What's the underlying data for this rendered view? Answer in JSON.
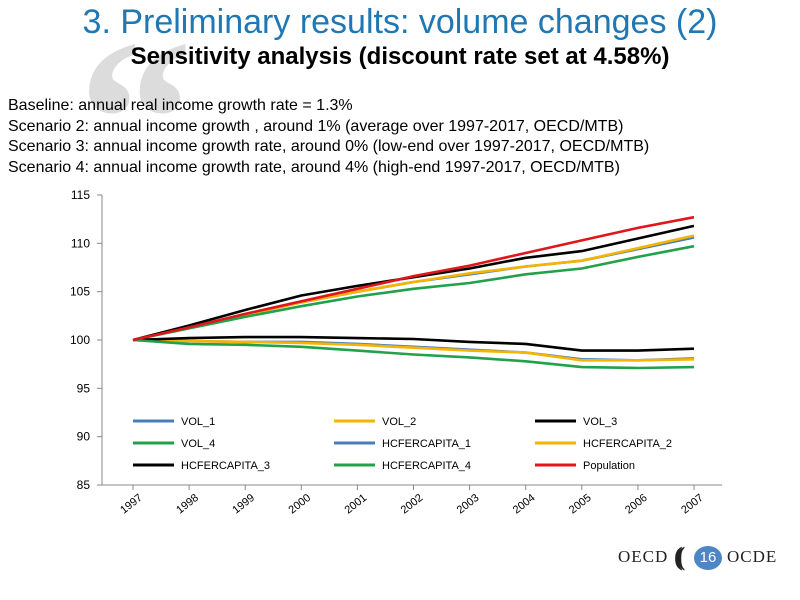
{
  "slide": {
    "title": "3. Preliminary results: volume changes (2)",
    "subtitle": "Sensitivity analysis (discount rate set at 4.58%)",
    "scenarios": [
      "Baseline: annual real income growth rate = 1.3%",
      "Scenario 2: annual income growth , around 1% (average  over 1997-2017, OECD/MTB)",
      "Scenario 3: annual income growth rate, around 0% (low-end  over 1997-2017, OECD/MTB)",
      "Scenario 4: annual income growth rate, around 4% (high-end 1997-2017, OECD/MTB)"
    ],
    "footer": {
      "left_logo": "OECD",
      "right_logo": "OCDE",
      "page_number": "16"
    }
  },
  "chart_data": {
    "type": "line",
    "x": [
      "1997",
      "1998",
      "1999",
      "2000",
      "2001",
      "2002",
      "2003",
      "2004",
      "2005",
      "2006",
      "2007"
    ],
    "ylim": [
      85,
      115
    ],
    "yticks": [
      85,
      90,
      95,
      100,
      105,
      110,
      115
    ],
    "grid": false,
    "legend_position": "inside-bottom",
    "series": [
      {
        "name": "VOL_1",
        "color": "#4a7ebb",
        "values": [
          100,
          101.3,
          102.6,
          103.9,
          105.0,
          106.0,
          106.8,
          107.6,
          108.2,
          109.4,
          110.6
        ]
      },
      {
        "name": "VOL_2",
        "color": "#f4b400",
        "values": [
          100,
          101.3,
          102.6,
          103.9,
          105.0,
          106.0,
          106.9,
          107.6,
          108.2,
          109.5,
          110.8
        ]
      },
      {
        "name": "VOL_3",
        "color": "#000000",
        "values": [
          100,
          101.5,
          103.1,
          104.6,
          105.6,
          106.5,
          107.4,
          108.5,
          109.2,
          110.5,
          111.8
        ]
      },
      {
        "name": "VOL_4",
        "color": "#22a14b",
        "values": [
          100,
          101.2,
          102.4,
          103.5,
          104.5,
          105.3,
          105.9,
          106.8,
          107.4,
          108.6,
          109.7
        ]
      },
      {
        "name": "HCFERCAPITA_1",
        "color": "#4a7ebb",
        "values": [
          100,
          99.9,
          99.8,
          99.8,
          99.6,
          99.3,
          99.0,
          98.7,
          98.0,
          97.9,
          98.1
        ]
      },
      {
        "name": "HCFERCAPITA_2",
        "color": "#f4b400",
        "values": [
          100,
          99.9,
          99.8,
          99.7,
          99.5,
          99.2,
          98.9,
          98.7,
          97.9,
          97.9,
          98.0
        ]
      },
      {
        "name": "HCFERCAPITA_3",
        "color": "#000000",
        "values": [
          100,
          100.2,
          100.3,
          100.3,
          100.2,
          100.1,
          99.8,
          99.6,
          98.9,
          98.9,
          99.1
        ]
      },
      {
        "name": "HCFERCAPITA_4",
        "color": "#22a14b",
        "values": [
          100,
          99.6,
          99.5,
          99.3,
          98.9,
          98.5,
          98.2,
          97.8,
          97.2,
          97.1,
          97.2
        ]
      },
      {
        "name": "Population",
        "color": "#e0161d",
        "values": [
          100,
          101.3,
          102.7,
          104.0,
          105.3,
          106.6,
          107.7,
          109.0,
          110.3,
          111.6,
          112.7
        ]
      }
    ]
  }
}
